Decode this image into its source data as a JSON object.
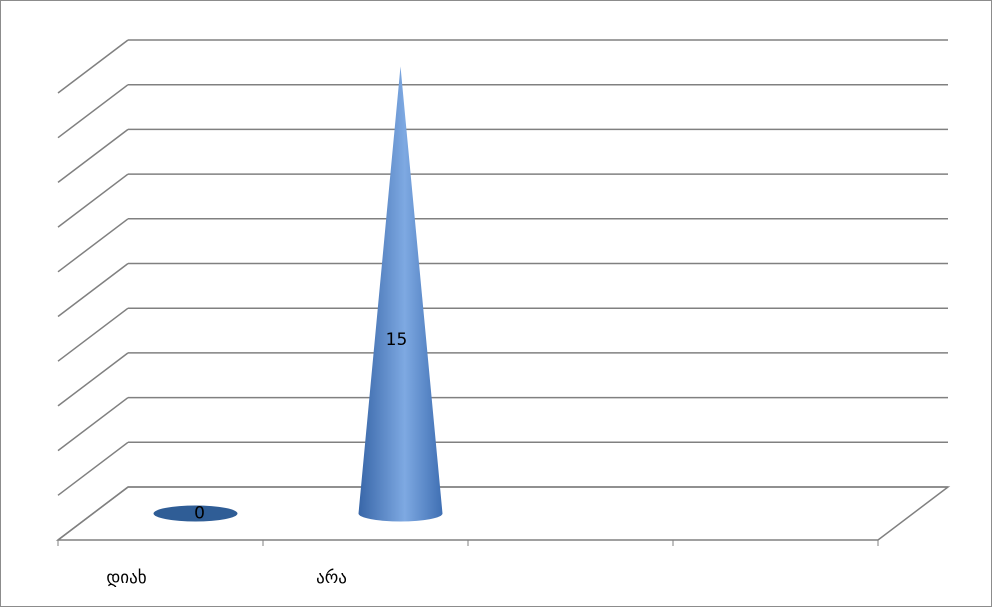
{
  "chart_data": {
    "type": "cone",
    "categories": [
      "დიახ",
      "არა",
      null,
      null
    ],
    "values": [
      0,
      15,
      null,
      null
    ],
    "color": "#4a7ec4",
    "ylim": [
      0,
      15
    ],
    "yticks": [
      0,
      1.5,
      3,
      4.5,
      6,
      7.5,
      9,
      10.5,
      12,
      13.5,
      15
    ],
    "grid": true
  }
}
